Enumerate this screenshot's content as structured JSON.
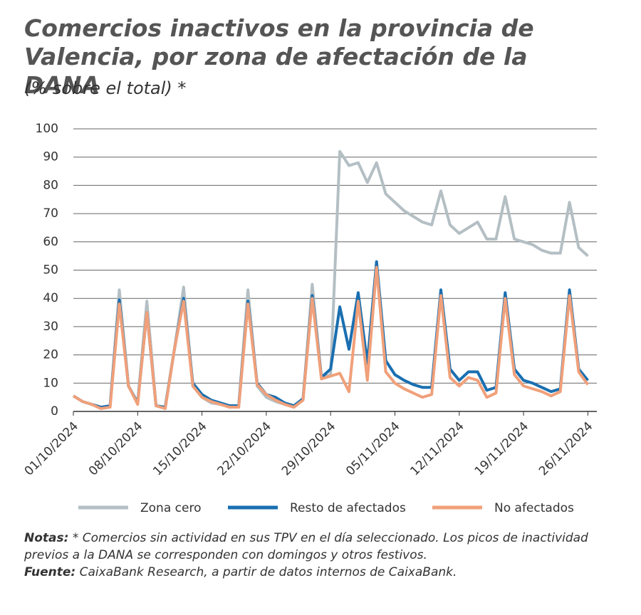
{
  "chart_data": {
    "type": "line",
    "title": "Comercios inactivos en la provincia de Valencia, por zona de afectación de la DANA",
    "subtitle": "(% sobre el total) *",
    "x": [
      "01/10/2024",
      "02/10/2024",
      "03/10/2024",
      "04/10/2024",
      "05/10/2024",
      "06/10/2024",
      "07/10/2024",
      "08/10/2024",
      "09/10/2024",
      "10/10/2024",
      "11/10/2024",
      "12/10/2024",
      "13/10/2024",
      "14/10/2024",
      "15/10/2024",
      "16/10/2024",
      "17/10/2024",
      "18/10/2024",
      "19/10/2024",
      "20/10/2024",
      "21/10/2024",
      "22/10/2024",
      "23/10/2024",
      "24/10/2024",
      "25/10/2024",
      "26/10/2024",
      "27/10/2024",
      "28/10/2024",
      "29/10/2024",
      "30/10/2024",
      "31/10/2024",
      "01/11/2024",
      "02/11/2024",
      "03/11/2024",
      "04/11/2024",
      "05/11/2024",
      "06/11/2024",
      "07/11/2024",
      "08/11/2024",
      "09/11/2024",
      "10/11/2024",
      "11/11/2024",
      "12/11/2024",
      "13/11/2024",
      "14/11/2024",
      "15/11/2024",
      "16/11/2024",
      "17/11/2024",
      "18/11/2024",
      "19/11/2024",
      "20/11/2024",
      "21/11/2024",
      "22/11/2024",
      "23/11/2024",
      "24/11/2024",
      "25/11/2024",
      "26/11/2024"
    ],
    "xticks": [
      "01/10/2024",
      "08/10/2024",
      "15/10/2024",
      "22/10/2024",
      "29/10/2024",
      "05/11/2024",
      "12/11/2024",
      "19/11/2024",
      "26/11/2024"
    ],
    "series": [
      {
        "name": "Zona cero",
        "color": "#b4bfc4",
        "values": [
          5.5,
          3.5,
          2.5,
          1.5,
          2,
          43,
          9,
          3,
          39,
          2,
          1.5,
          22,
          44,
          9,
          5,
          3,
          2.5,
          2,
          2,
          43,
          9,
          5,
          3.5,
          2.5,
          1.5,
          4,
          45,
          12,
          13,
          92,
          87,
          88,
          81,
          88,
          77,
          74,
          71,
          69,
          67,
          66,
          78,
          66,
          63,
          65,
          67,
          61,
          61,
          76,
          61,
          60,
          59,
          57,
          56,
          56,
          74,
          58,
          55
        ]
      },
      {
        "name": "Resto de afectados",
        "color": "#1a6fb0",
        "values": [
          5.5,
          3.5,
          2.5,
          1.5,
          2,
          39.5,
          9,
          3,
          35,
          2,
          1.5,
          22,
          40,
          10,
          6,
          4,
          3,
          2,
          2,
          39,
          10,
          6,
          5,
          3,
          2,
          4.5,
          41,
          12,
          15,
          37,
          22,
          42,
          17,
          53,
          18,
          13,
          11,
          9.5,
          8.5,
          8.5,
          43,
          15,
          11,
          14,
          14,
          7.5,
          8.5,
          42,
          15,
          11,
          10,
          8.5,
          7,
          8,
          43,
          15,
          11
        ]
      },
      {
        "name": "No afectados",
        "color": "#f0a07a",
        "values": [
          5.5,
          3.5,
          2.5,
          1,
          1.5,
          38,
          9,
          2.5,
          35,
          2,
          1,
          22,
          39,
          9,
          5,
          3.5,
          2.5,
          1.5,
          1.5,
          38,
          9.5,
          6,
          4,
          2.5,
          1.5,
          4,
          40,
          11.5,
          12.5,
          13.5,
          7,
          39,
          11,
          51,
          14,
          10,
          8,
          6.5,
          5,
          6,
          41,
          12,
          9,
          12,
          11,
          5,
          6.5,
          40,
          13,
          9,
          8,
          7,
          5.5,
          7,
          41,
          14,
          9.5
        ]
      }
    ],
    "ylim": [
      0,
      100
    ],
    "yticks": [
      0,
      10,
      20,
      30,
      40,
      50,
      60,
      70,
      80,
      90,
      100
    ],
    "grid": true,
    "notes": {
      "label": "Notas:",
      "text": "* Comercios sin actividad en sus TPV en el día seleccionado. Los picos de inactividad previos a la DANA se corresponden con domingos y otros festivos."
    },
    "source": {
      "label": "Fuente:",
      "text": "CaixaBank Research, a partir de datos internos de CaixaBank."
    }
  }
}
